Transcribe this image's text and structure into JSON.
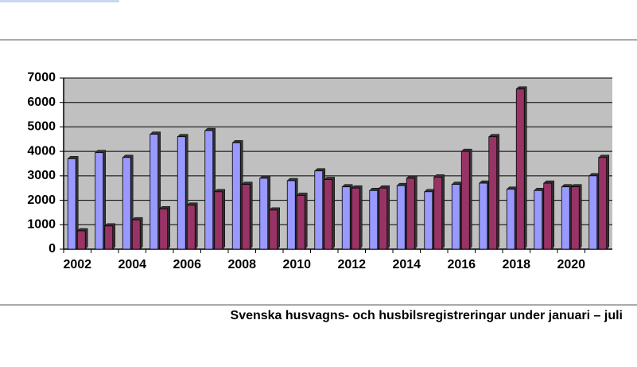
{
  "chart_data": {
    "type": "bar",
    "title": "Svenska husvagns- och husbilsregistreringar under januari – juli",
    "categories": [
      "2002",
      null,
      "2004",
      null,
      "2006",
      null,
      "2008",
      null,
      "2010",
      null,
      "2012",
      null,
      "2014",
      null,
      "2016",
      null,
      "2018",
      null,
      "2020",
      null
    ],
    "series": [
      {
        "color": "#9999ff",
        "values": [
          3700,
          3950,
          3750,
          4700,
          4600,
          4850,
          4350,
          2900,
          2800,
          3200,
          2550,
          2400,
          2600,
          2350,
          2650,
          2700,
          2450,
          2400,
          2550,
          3000
        ]
      },
      {
        "color": "#993366",
        "values": [
          750,
          950,
          1200,
          1650,
          1800,
          2350,
          2650,
          1600,
          2200,
          2850,
          2500,
          2500,
          2900,
          2950,
          4000,
          4600,
          6550,
          2700,
          2550,
          3750
        ]
      }
    ],
    "ylim": [
      0,
      7000
    ],
    "yticks": [
      0,
      1000,
      2000,
      3000,
      4000,
      5000,
      6000,
      7000
    ],
    "grid": true
  }
}
